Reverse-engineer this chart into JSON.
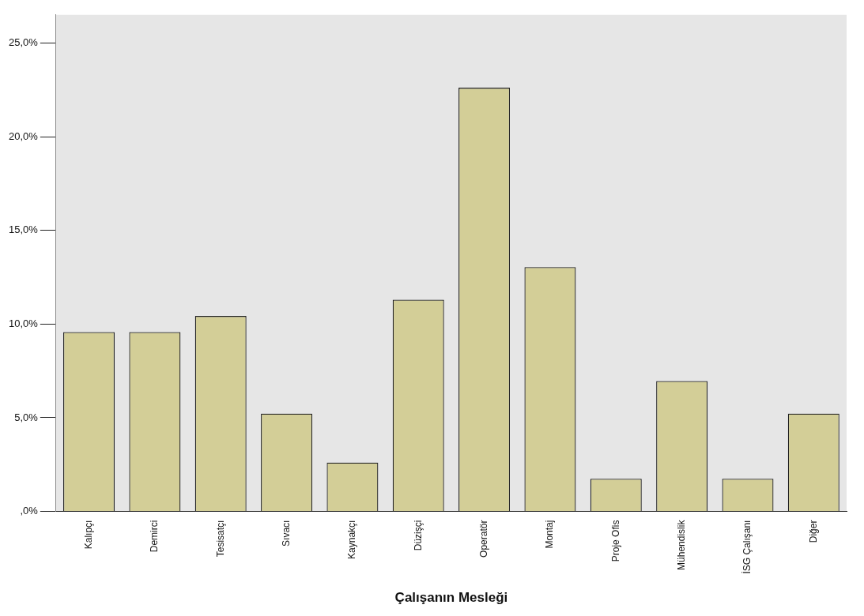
{
  "chart_data": {
    "type": "bar",
    "xlabel": "Çalışanın Mesleği",
    "categories": [
      "Kalıpçı",
      "Demirci",
      "Tesisatçı",
      "Sıvacı",
      "Kaynakçı",
      "Düzişçi",
      "Operatör",
      "Montaj",
      "Proje Ofis",
      "Mühendislik",
      "İSG Çalışanı",
      "Diğer"
    ],
    "values": [
      9.57,
      9.57,
      10.43,
      5.22,
      2.61,
      11.3,
      22.61,
      13.04,
      1.74,
      6.96,
      1.74,
      5.22
    ],
    "color": "#d3ce97",
    "ylim": [
      0,
      26.5
    ],
    "yticks": [
      {
        "value": 0,
        "label": ",0%"
      },
      {
        "value": 5,
        "label": "5,0%"
      },
      {
        "value": 10,
        "label": "10,0%"
      },
      {
        "value": 15,
        "label": "15,0%"
      },
      {
        "value": 20,
        "label": "20,0%"
      },
      {
        "value": 25,
        "label": "25,0%"
      }
    ],
    "grid": false,
    "legend": false
  }
}
